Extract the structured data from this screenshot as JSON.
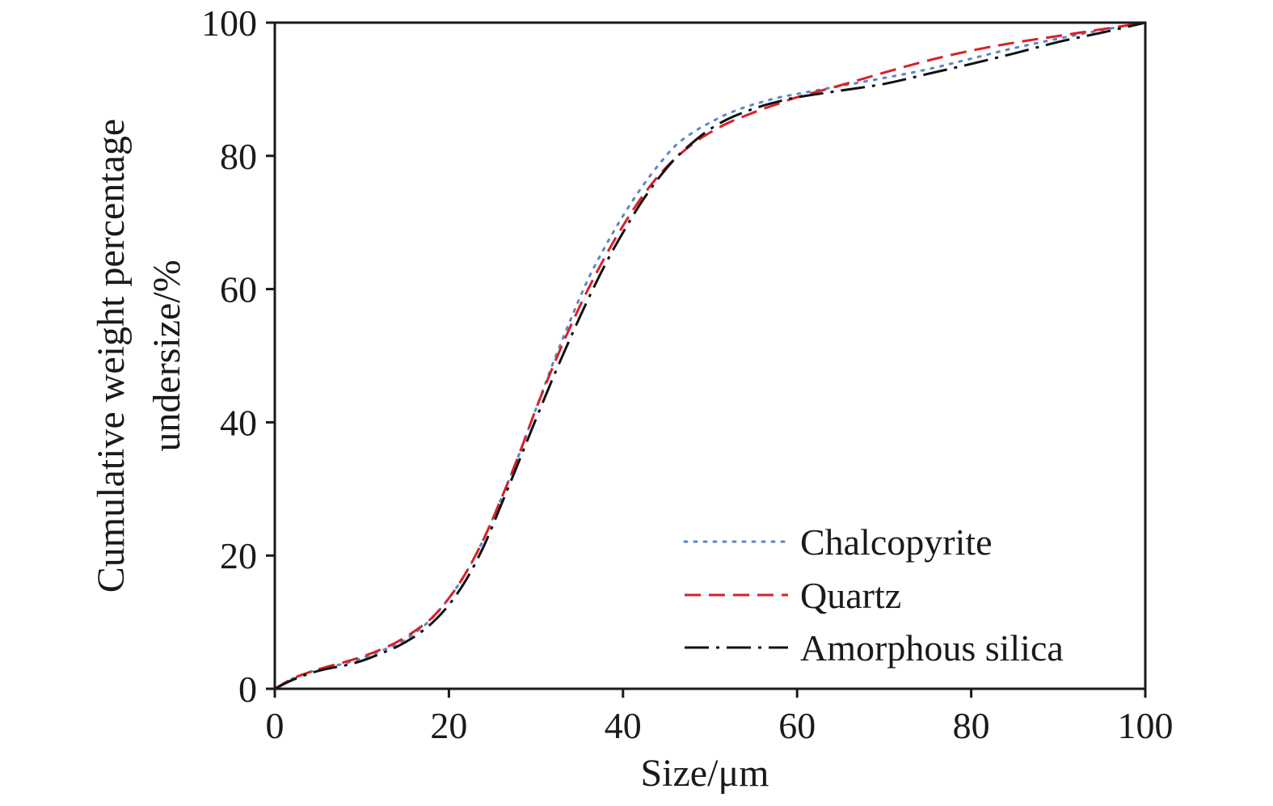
{
  "chart_data": {
    "type": "line",
    "title": "",
    "xlabel": "Size/μm",
    "ylabel_line1": "Cumulative weight percentage",
    "ylabel_line2": "undersize/%",
    "xlim": [
      0,
      100
    ],
    "ylim": [
      0,
      100
    ],
    "xticks": [
      0,
      20,
      40,
      60,
      80,
      100
    ],
    "yticks": [
      0,
      20,
      40,
      60,
      80,
      100
    ],
    "grid": false,
    "legend_position": "bottom-right",
    "series": [
      {
        "name": "Chalcopyrite",
        "color": "#5a86c5",
        "style": "dotted",
        "x": [
          0,
          2,
          4,
          6,
          8,
          10,
          12,
          14,
          16,
          18,
          20,
          22,
          24,
          26,
          28,
          30,
          32,
          34,
          36,
          38,
          40,
          42,
          44,
          46,
          48,
          50,
          52,
          54,
          56,
          58,
          60,
          65,
          70,
          75,
          80,
          85,
          90,
          95,
          100
        ],
        "y": [
          0,
          1.5,
          2.5,
          3.2,
          3.8,
          4.6,
          5.6,
          6.7,
          8.3,
          10.5,
          13.6,
          17.5,
          22.5,
          28.5,
          35,
          42,
          49,
          55.5,
          61.5,
          66.5,
          71,
          75,
          78.5,
          81.5,
          83.5,
          85,
          86.3,
          87.3,
          88.1,
          88.8,
          89.3,
          90.5,
          91.7,
          93,
          94.6,
          96.2,
          97.6,
          98.9,
          100
        ]
      },
      {
        "name": "Quartz",
        "color": "#d8202a",
        "style": "dashed",
        "x": [
          0,
          2,
          4,
          6,
          8,
          10,
          12,
          14,
          16,
          18,
          20,
          22,
          24,
          26,
          28,
          30,
          32,
          34,
          36,
          38,
          40,
          42,
          44,
          46,
          48,
          50,
          52,
          54,
          56,
          58,
          60,
          65,
          70,
          75,
          80,
          85,
          90,
          95,
          100
        ],
        "y": [
          0,
          1.5,
          2.5,
          3.3,
          4,
          4.8,
          5.8,
          7,
          8.6,
          10.6,
          13.6,
          17.5,
          22.5,
          28.5,
          35,
          42,
          48.5,
          54.5,
          60,
          65,
          69.5,
          73.5,
          76.9,
          79.6,
          81.8,
          83.5,
          84.9,
          86,
          87,
          87.9,
          88.8,
          90.6,
          92.5,
          94.3,
          95.8,
          97,
          98,
          99,
          100
        ]
      },
      {
        "name": "Amorphous silica",
        "color": "#111111",
        "style": "dashdot",
        "x": [
          0,
          2,
          4,
          6,
          8,
          10,
          12,
          14,
          16,
          18,
          20,
          22,
          24,
          26,
          28,
          30,
          32,
          34,
          36,
          38,
          40,
          42,
          44,
          46,
          48,
          50,
          52,
          54,
          56,
          58,
          60,
          65,
          70,
          75,
          80,
          85,
          90,
          95,
          100
        ],
        "y": [
          0,
          1.3,
          2.3,
          3,
          3.5,
          4.2,
          5.2,
          6.3,
          7.8,
          9.8,
          12.6,
          16.4,
          21.4,
          27.6,
          34,
          40.5,
          46.8,
          52.8,
          58.5,
          63.8,
          68.5,
          72.8,
          76.5,
          79.6,
          82,
          84,
          85.5,
          86.6,
          87.5,
          88.2,
          88.8,
          89.8,
          90.8,
          92.3,
          93.8,
          95.4,
          97.1,
          98.5,
          100
        ]
      }
    ]
  }
}
